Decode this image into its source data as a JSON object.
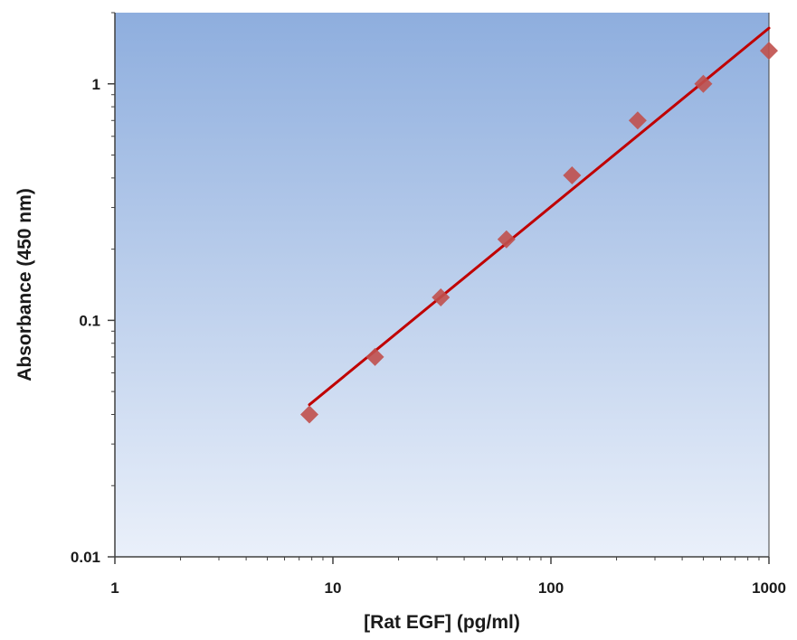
{
  "chart_data": {
    "type": "scatter",
    "title": "",
    "xlabel": "[Rat EGF] (pg/ml)",
    "ylabel": "Absorbance (450 nm)",
    "xscale": "log",
    "yscale": "log",
    "xlim": [
      1,
      1000
    ],
    "ylim": [
      0.01,
      2
    ],
    "xticks": [
      {
        "value": 1,
        "label": "1"
      },
      {
        "value": 10,
        "label": "10"
      },
      {
        "value": 100,
        "label": "100"
      },
      {
        "value": 1000,
        "label": "1000"
      }
    ],
    "yticks": [
      {
        "value": 0.01,
        "label": "0.01"
      },
      {
        "value": 0.1,
        "label": "0.1"
      },
      {
        "value": 1,
        "label": "1"
      }
    ],
    "grid": false,
    "legend": "none",
    "series": [
      {
        "kind": "points",
        "marker": "diamond",
        "color": "#c0504d",
        "x": [
          7.8,
          15.6,
          31.25,
          62.5,
          125,
          250,
          500,
          1000
        ],
        "y": [
          0.04,
          0.07,
          0.125,
          0.22,
          0.41,
          0.7,
          1.0,
          1.38
        ]
      },
      {
        "kind": "fit-line",
        "color": "#c00000",
        "x": [
          7.8,
          1000
        ],
        "y": [
          0.044,
          1.72
        ]
      }
    ],
    "background": {
      "top": "#8eaede",
      "bottom": "#eaf0fa"
    },
    "axis_color": "#404040"
  }
}
